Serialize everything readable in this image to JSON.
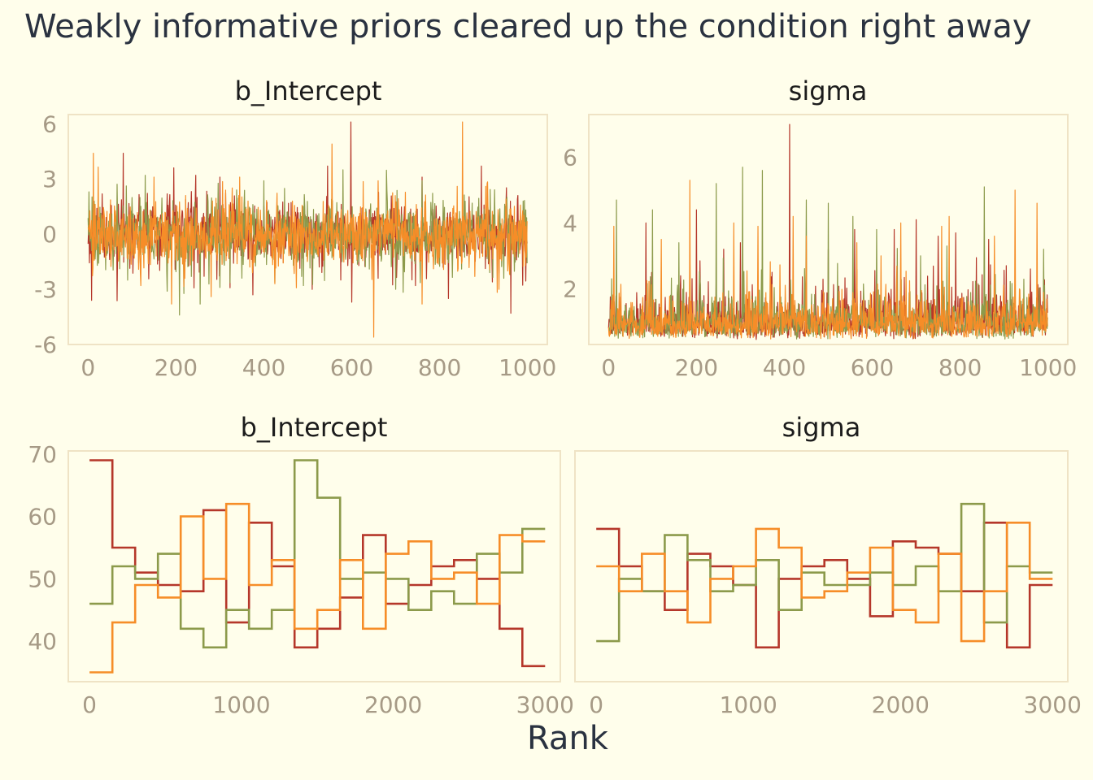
{
  "title": "Weakly informative priors cleared up the condition right away",
  "colors": {
    "chain1": "#B5372A",
    "chain2": "#8C9A4B",
    "chain3": "#F68D28",
    "background": "#FFFEEB"
  },
  "chart_data": [
    {
      "type": "line",
      "title": "b_Intercept",
      "xlabel": "",
      "ylabel": "",
      "xlim": [
        -45,
        1045
      ],
      "ylim": [
        -6,
        6.5
      ],
      "xticks": [
        0,
        200,
        400,
        600,
        800,
        1000
      ],
      "yticks": [
        -6,
        -3,
        0,
        3,
        6
      ],
      "ytick_labels": [
        "-6",
        "-3",
        "0",
        "3",
        "6"
      ],
      "n_iter": 1000,
      "series": [
        {
          "chain": 1,
          "color": "#B5372A",
          "center": 0,
          "spread": 0.8,
          "floor": null,
          "highlights": [
            [
              8,
              -3.6
            ],
            [
              80,
              4.4
            ],
            [
              195,
              3.6
            ],
            [
              245,
              3.2
            ],
            [
              300,
              3.1
            ],
            [
              375,
              -3.3
            ],
            [
              545,
              3.7
            ],
            [
              598,
              6.1
            ],
            [
              600,
              -3.7
            ],
            [
              660,
              -2.4
            ],
            [
              745,
              -2.8
            ],
            [
              760,
              3.1
            ],
            [
              820,
              -3.5
            ],
            [
              895,
              3.7
            ],
            [
              920,
              -2.6
            ],
            [
              935,
              -2.1
            ],
            [
              962,
              -4.3
            ],
            [
              978,
              2.1
            ]
          ]
        },
        {
          "chain": 2,
          "color": "#8C9A4B",
          "center": 0,
          "spread": 0.8,
          "floor": null,
          "highlights": [
            [
              2,
              2.3
            ],
            [
              90,
              -2.5
            ],
            [
              130,
              3.2
            ],
            [
              180,
              -3.1
            ],
            [
              208,
              -4.4
            ],
            [
              235,
              -2.3
            ],
            [
              255,
              -3.8
            ],
            [
              300,
              -2.9
            ],
            [
              400,
              2.9
            ],
            [
              580,
              3.5
            ],
            [
              640,
              -1.9
            ],
            [
              700,
              -3.0
            ],
            [
              760,
              2.9
            ],
            [
              850,
              -1.9
            ],
            [
              960,
              -2.2
            ]
          ]
        },
        {
          "chain": 3,
          "color": "#F68D28",
          "center": 0,
          "spread": 0.8,
          "floor": null,
          "highlights": [
            [
              12,
              4.4
            ],
            [
              120,
              -2.8
            ],
            [
              150,
              3.1
            ],
            [
              190,
              -3.8
            ],
            [
              220,
              -2.4
            ],
            [
              280,
              -3.4
            ],
            [
              345,
              3.1
            ],
            [
              425,
              -2.7
            ],
            [
              555,
              4.9
            ],
            [
              650,
              -5.6
            ],
            [
              660,
              2.9
            ],
            [
              760,
              -3.8
            ],
            [
              840,
              2.6
            ],
            [
              852,
              6.1
            ],
            [
              880,
              -2.3
            ],
            [
              905,
              2.6
            ],
            [
              955,
              -2.0
            ],
            [
              995,
              -1.7
            ]
          ]
        }
      ]
    },
    {
      "type": "line",
      "title": "sigma",
      "xlabel": "",
      "ylabel": "",
      "xlim": [
        -45,
        1045
      ],
      "ylim": [
        0.3,
        7.3
      ],
      "xticks": [
        0,
        200,
        400,
        600,
        800,
        1000
      ],
      "yticks": [
        2,
        4,
        6
      ],
      "ytick_labels": [
        "2",
        "4",
        "6"
      ],
      "n_iter": 1000,
      "series": [
        {
          "chain": 1,
          "color": "#B5372A",
          "center": 1.1,
          "spread": 0.35,
          "floor": 0.45,
          "highlights": [
            [
              85,
              4.0
            ],
            [
              200,
              4.4
            ],
            [
              262,
              3.2
            ],
            [
              300,
              3.4
            ],
            [
              412,
              7.0
            ],
            [
              500,
              3.2
            ],
            [
              560,
              3.8
            ],
            [
              650,
              3.8
            ],
            [
              700,
              4.1
            ],
            [
              750,
              3.6
            ],
            [
              790,
              3.7
            ],
            [
              865,
              3.5
            ],
            [
              905,
              2.7
            ],
            [
              960,
              2.6
            ]
          ]
        },
        {
          "chain": 2,
          "color": "#8C9A4B",
          "center": 1.1,
          "spread": 0.35,
          "floor": 0.45,
          "highlights": [
            [
              18,
              4.7
            ],
            [
              100,
              4.4
            ],
            [
              160,
              3.4
            ],
            [
              245,
              3.5
            ],
            [
              245,
              0.3
            ],
            [
              245,
              5.2
            ],
            [
              305,
              5.7
            ],
            [
              350,
              5.6
            ],
            [
              450,
              4.7
            ],
            [
              500,
              4.6
            ],
            [
              556,
              4.2
            ],
            [
              610,
              3.8
            ],
            [
              710,
              3.0
            ],
            [
              770,
              3.3
            ],
            [
              855,
              5.1
            ],
            [
              990,
              3.2
            ]
          ]
        },
        {
          "chain": 3,
          "color": "#F68D28",
          "center": 1.1,
          "spread": 0.35,
          "floor": 0.45,
          "highlights": [
            [
              12,
              3.9
            ],
            [
              120,
              3.5
            ],
            [
              185,
              5.3
            ],
            [
              285,
              4.0
            ],
            [
              340,
              3.9
            ],
            [
              420,
              4.2
            ],
            [
              450,
              3.6
            ],
            [
              565,
              3.4
            ],
            [
              620,
              3.0
            ],
            [
              665,
              4.0
            ],
            [
              758,
              3.9
            ],
            [
              775,
              4.2
            ],
            [
              878,
              3.6
            ],
            [
              925,
              5.0
            ],
            [
              975,
              4.6
            ]
          ]
        }
      ]
    },
    {
      "type": "line",
      "title": "b_Intercept",
      "xlabel": "",
      "ylabel": "",
      "xlim": [
        -140,
        3100
      ],
      "ylim": [
        33.5,
        70.5
      ],
      "xticks": [
        0,
        1000,
        2000,
        3000
      ],
      "yticks": [
        40,
        50,
        60,
        70
      ],
      "ytick_labels": [
        "40",
        "50",
        "60",
        "70"
      ],
      "step": "steps-post",
      "bin_edges": [
        0,
        150,
        300,
        450,
        600,
        750,
        900,
        1050,
        1200,
        1350,
        1500,
        1650,
        1800,
        1950,
        2100,
        2250,
        2400,
        2550,
        2700,
        2850,
        3000
      ],
      "series": [
        {
          "chain": 1,
          "color": "#B5372A",
          "values": [
            69,
            55,
            51,
            49,
            48,
            61,
            43,
            59,
            52,
            39,
            42,
            47,
            57,
            46,
            49,
            52,
            53,
            50,
            42,
            36
          ]
        },
        {
          "chain": 2,
          "color": "#8C9A4B",
          "values": [
            46,
            52,
            50,
            54,
            42,
            39,
            45,
            42,
            45,
            69,
            63,
            50,
            51,
            50,
            45,
            48,
            46,
            54,
            51,
            58
          ]
        },
        {
          "chain": 3,
          "color": "#F68D28",
          "values": [
            35,
            43,
            49,
            47,
            60,
            50,
            62,
            49,
            53,
            42,
            45,
            53,
            42,
            54,
            56,
            50,
            51,
            46,
            57,
            56
          ]
        }
      ]
    },
    {
      "type": "line",
      "title": "sigma",
      "xlabel": "",
      "ylabel": "",
      "xlim": [
        -140,
        3100
      ],
      "ylim": [
        33.5,
        70.5
      ],
      "xticks": [
        0,
        1000,
        2000,
        3000
      ],
      "yticks": [],
      "ytick_labels": [],
      "step": "steps-post",
      "bin_edges": [
        0,
        150,
        300,
        450,
        600,
        750,
        900,
        1050,
        1200,
        1350,
        1500,
        1650,
        1800,
        1950,
        2100,
        2250,
        2400,
        2550,
        2700,
        2850,
        3000
      ],
      "series": [
        {
          "chain": 1,
          "color": "#B5372A",
          "values": [
            58,
            52,
            48,
            45,
            54,
            52,
            49,
            39,
            50,
            52,
            53,
            50,
            44,
            56,
            55,
            54,
            48,
            59,
            39,
            49
          ]
        },
        {
          "chain": 2,
          "color": "#8C9A4B",
          "values": [
            40,
            50,
            48,
            57,
            53,
            48,
            49,
            53,
            45,
            51,
            49,
            49,
            51,
            49,
            52,
            48,
            62,
            43,
            52,
            51
          ]
        },
        {
          "chain": 3,
          "color": "#F68D28",
          "values": [
            52,
            48,
            54,
            48,
            43,
            50,
            52,
            58,
            55,
            47,
            48,
            51,
            55,
            45,
            43,
            54,
            40,
            48,
            59,
            50
          ]
        }
      ]
    }
  ],
  "shared_xlabel": "Rank"
}
